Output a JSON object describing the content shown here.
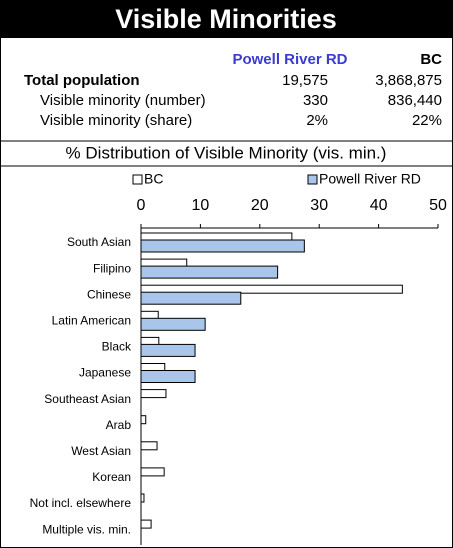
{
  "header": {
    "title": "Visible Minorities"
  },
  "table": {
    "columns": [
      "Powell River RD",
      "BC"
    ],
    "rows": [
      [
        "Total population",
        "19,575",
        "3,868,875"
      ],
      [
        "Visible minority (number)",
        "330",
        "836,440"
      ],
      [
        "Visible minority (share)",
        "2%",
        "22%"
      ]
    ]
  },
  "chart_data": {
    "type": "bar",
    "orientation": "horizontal",
    "title": "% Distribution of Visible Minority (vis. min.)",
    "categories": [
      "South Asian",
      "Filipino",
      "Chinese",
      "Latin American",
      "Black",
      "Japanese",
      "Southeast Asian",
      "Arab",
      "West Asian",
      "Korean",
      "Not incl. elsewhere",
      "Multiple vis. min."
    ],
    "series": [
      {
        "name": "BC",
        "color": "#ffffff",
        "values": [
          25.4,
          7.7,
          44.0,
          2.9,
          3.0,
          4.0,
          4.2,
          0.8,
          2.7,
          3.9,
          0.5,
          1.7
        ]
      },
      {
        "name": "Powell River RD",
        "color": "#a9c6ea",
        "values": [
          27.5,
          23.0,
          16.8,
          10.8,
          9.1,
          9.1,
          0,
          0,
          0,
          0,
          0,
          0
        ]
      }
    ],
    "xlim": [
      0,
      50
    ],
    "xticks": [
      0,
      10,
      20,
      30,
      40,
      50
    ],
    "legend": "top"
  }
}
